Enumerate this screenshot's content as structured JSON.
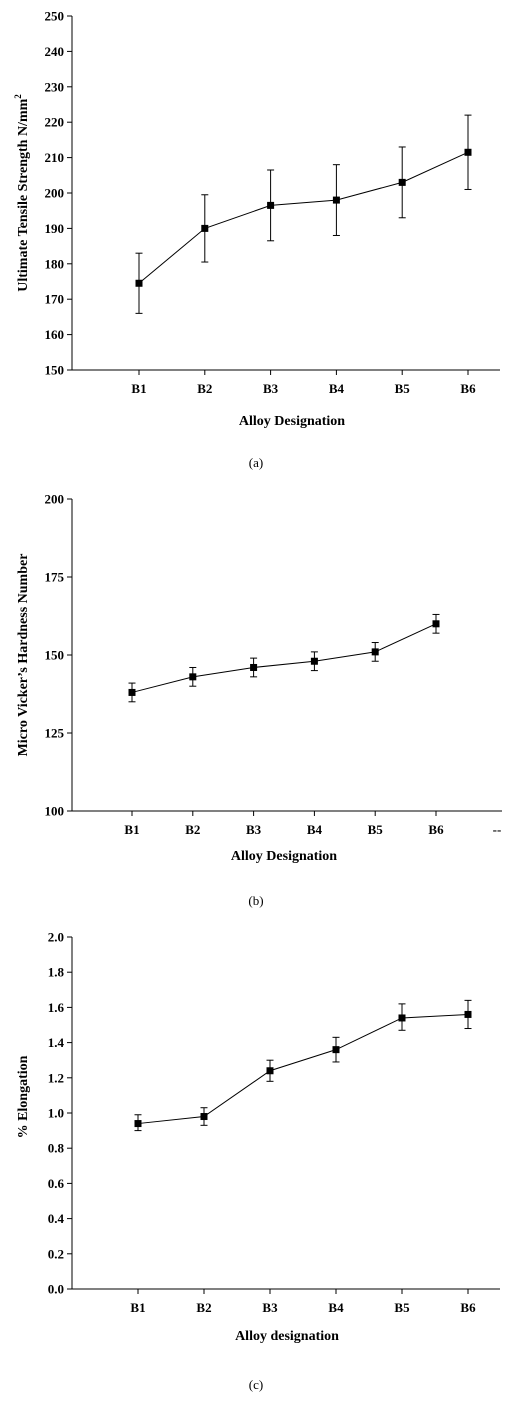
{
  "chart_data": [
    {
      "type": "line",
      "caption": "(a)",
      "xlabel": "Alloy Designation",
      "ylabel": "Ultimate Tensile Strength N/mm",
      "ylabel_sup": "2",
      "categories": [
        "B1",
        "B2",
        "B3",
        "B4",
        "B5",
        "B6"
      ],
      "extra_x_tick": "",
      "ylim": [
        150,
        250
      ],
      "yticks": [
        "150",
        "160",
        "170",
        "180",
        "190",
        "200",
        "210",
        "220",
        "230",
        "240",
        "250"
      ],
      "series": [
        {
          "values": [
            174.5,
            190,
            196.5,
            198,
            203,
            211.5
          ],
          "error_low": [
            166,
            180.5,
            186.5,
            188,
            193,
            201
          ],
          "error_high": [
            183,
            199.5,
            206.5,
            208,
            213,
            222
          ]
        }
      ],
      "marker": "square",
      "grid": false
    },
    {
      "type": "line",
      "caption": "(b)",
      "xlabel": "Alloy Designation",
      "ylabel": "Micro Vicker’s Hardness Number",
      "ylabel_sup": "",
      "categories": [
        "B1",
        "B2",
        "B3",
        "B4",
        "B5",
        "B6"
      ],
      "extra_x_tick": "--",
      "ylim": [
        100,
        200
      ],
      "yticks": [
        "100",
        "125",
        "150",
        "175",
        "200"
      ],
      "series": [
        {
          "values": [
            138,
            143,
            146,
            148,
            151,
            160
          ],
          "error_low": [
            135,
            140,
            143,
            145,
            148,
            157
          ],
          "error_high": [
            141,
            146,
            149,
            151,
            154,
            163
          ]
        }
      ],
      "marker": "square",
      "grid": false
    },
    {
      "type": "line",
      "caption": "(c)",
      "xlabel": "Alloy designation",
      "ylabel": "% Elongation",
      "ylabel_sup": "",
      "categories": [
        "B1",
        "B2",
        "B3",
        "B4",
        "B5",
        "B6"
      ],
      "extra_x_tick": "",
      "ylim": [
        0,
        2
      ],
      "yticks": [
        "0.0",
        "0.2",
        "0.4",
        "0.6",
        "0.8",
        "1.0",
        "1.2",
        "1.4",
        "1.6",
        "1.8",
        "2.0"
      ],
      "series": [
        {
          "values": [
            0.94,
            0.98,
            1.24,
            1.36,
            1.54,
            1.56
          ],
          "error_low": [
            0.9,
            0.93,
            1.18,
            1.29,
            1.47,
            1.48
          ],
          "error_high": [
            0.99,
            1.03,
            1.3,
            1.43,
            1.62,
            1.64
          ]
        }
      ],
      "marker": "square",
      "grid": false
    }
  ],
  "colors": {
    "ink": "#000000",
    "background": "#ffffff"
  }
}
